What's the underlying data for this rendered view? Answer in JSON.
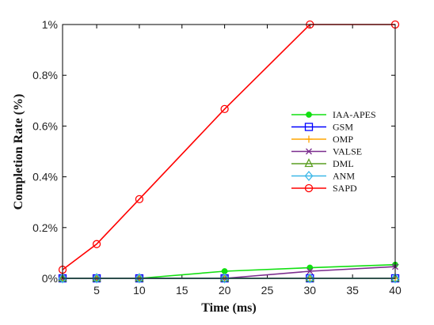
{
  "chart_data": {
    "type": "line",
    "xlabel": "Time (ms)",
    "ylabel": "Completion Rate (%)",
    "x": [
      1,
      5,
      10,
      20,
      30,
      40
    ],
    "xlim": [
      1,
      40
    ],
    "ylim": [
      0,
      1
    ],
    "xticks": [
      5,
      10,
      15,
      20,
      25,
      30,
      35,
      40
    ],
    "yticks": [
      0,
      0.2,
      0.4,
      0.6,
      0.8,
      1
    ],
    "ytick_labels": [
      "0%",
      "0.2%",
      "0.4%",
      "0.6%",
      "0.8%",
      "1%"
    ],
    "grid": false,
    "legend_position": "right",
    "series": [
      {
        "name": "IAA-APES",
        "color": "#11e011",
        "marker": "asterisk-dot",
        "values": [
          0,
          0,
          0,
          0.028,
          0.042,
          0.054
        ]
      },
      {
        "name": "GSM",
        "color": "#0000ff",
        "marker": "square",
        "values": [
          0,
          0,
          0,
          0,
          0,
          0
        ]
      },
      {
        "name": "OMP",
        "color": "#ffa500",
        "marker": "plus",
        "values": [
          0,
          0,
          0,
          0,
          0,
          0
        ]
      },
      {
        "name": "VALSE",
        "color": "#7b2d8e",
        "marker": "x",
        "values": [
          0,
          0,
          0,
          0,
          0.028,
          0.046
        ]
      },
      {
        "name": "DML",
        "color": "#5a9e20",
        "marker": "triangle",
        "values": [
          0,
          0,
          0,
          0,
          0,
          0
        ]
      },
      {
        "name": "ANM",
        "color": "#3db8e8",
        "marker": "diamond",
        "values": [
          0,
          0,
          0,
          0,
          0,
          0
        ]
      },
      {
        "name": "SAPD",
        "color": "#ff0000",
        "marker": "circle",
        "values": [
          0.034,
          0.135,
          0.312,
          0.667,
          1.0,
          1.0
        ]
      }
    ]
  }
}
